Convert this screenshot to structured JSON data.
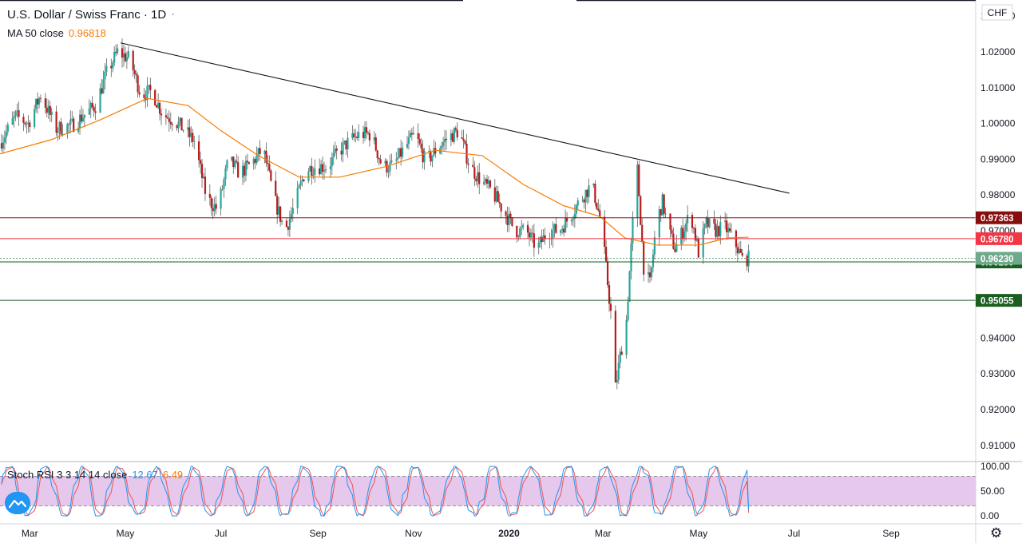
{
  "header": {
    "title": "U.S. Dollar / Swiss Franc · 1D",
    "ma_label": "MA 50 close",
    "ma_value": "0.96818"
  },
  "currency": "CHF",
  "stoch_rsi": {
    "label": "Stoch RSI 3 3 14 14 close",
    "k_value": "12.67",
    "d_value": "6.49",
    "ticks": [
      "100.00",
      "50.00",
      "0.00"
    ]
  },
  "chart_data": {
    "type": "candlestick",
    "title": "U.S. Dollar / Swiss Franc · 1D",
    "price_axis": {
      "range": [
        0.9055,
        1.0345
      ],
      "ticks": [
        "1.03000",
        "1.02000",
        "1.01000",
        "1.00000",
        "0.99000",
        "0.98000",
        "0.97000",
        "0.94000",
        "0.93000",
        "0.92000",
        "0.91000"
      ]
    },
    "time_axis": {
      "range": [
        "2019-02-10",
        "2020-10-25"
      ],
      "labels": [
        {
          "date": "2019-03-01",
          "text": "Mar"
        },
        {
          "date": "2019-05-01",
          "text": "May"
        },
        {
          "date": "2019-07-01",
          "text": "Jul"
        },
        {
          "date": "2019-09-01",
          "text": "Sep"
        },
        {
          "date": "2019-11-01",
          "text": "Nov"
        },
        {
          "date": "2020-01-01",
          "text": "2020"
        },
        {
          "date": "2020-03-01",
          "text": "Mar"
        },
        {
          "date": "2020-05-01",
          "text": "May"
        },
        {
          "date": "2020-07-01",
          "text": "Jul"
        },
        {
          "date": "2020-09-01",
          "text": "Sep"
        }
      ]
    },
    "price_path": [
      [
        "2019-02-10",
        0.9945
      ],
      [
        "2019-02-20",
        1.002
      ],
      [
        "2019-02-28",
        1.0
      ],
      [
        "2019-03-08",
        1.008
      ],
      [
        "2019-03-18",
        0.9985
      ],
      [
        "2019-03-28",
        0.9995
      ],
      [
        "2019-04-05",
        1.0025
      ],
      [
        "2019-04-12",
        1.005
      ],
      [
        "2019-04-19",
        1.014
      ],
      [
        "2019-04-26",
        1.02
      ],
      [
        "2019-05-04",
        1.018
      ],
      [
        "2019-05-11",
        1.008
      ],
      [
        "2019-05-18",
        1.009
      ],
      [
        "2019-05-25",
        1.0025
      ],
      [
        "2019-06-01",
        1.001
      ],
      [
        "2019-06-07",
        0.9985
      ],
      [
        "2019-06-14",
        0.995
      ],
      [
        "2019-06-22",
        0.979
      ],
      [
        "2019-06-29",
        0.976
      ],
      [
        "2019-07-06",
        0.99
      ],
      [
        "2019-07-13",
        0.986
      ],
      [
        "2019-07-21",
        0.989
      ],
      [
        "2019-07-28",
        0.993
      ],
      [
        "2019-08-04",
        0.979
      ],
      [
        "2019-08-11",
        0.97
      ],
      [
        "2019-08-17",
        0.977
      ],
      [
        "2019-08-24",
        0.987
      ],
      [
        "2019-08-31",
        0.988
      ],
      [
        "2019-09-07",
        0.988
      ],
      [
        "2019-09-14",
        0.992
      ],
      [
        "2019-09-21",
        0.995
      ],
      [
        "2019-09-28",
        0.997
      ],
      [
        "2019-10-05",
        0.997
      ],
      [
        "2019-10-12",
        0.988
      ],
      [
        "2019-10-19",
        0.988
      ],
      [
        "2019-10-26",
        0.993
      ],
      [
        "2019-11-02",
        0.997
      ],
      [
        "2019-11-09",
        0.989
      ],
      [
        "2019-11-16",
        0.993
      ],
      [
        "2019-11-23",
        0.996
      ],
      [
        "2019-11-30",
        0.998
      ],
      [
        "2019-12-07",
        0.988
      ],
      [
        "2019-12-14",
        0.984
      ],
      [
        "2019-12-21",
        0.981
      ],
      [
        "2019-12-28",
        0.976
      ],
      [
        "2020-01-05",
        0.97
      ],
      [
        "2020-01-12",
        0.97
      ],
      [
        "2020-01-19",
        0.965
      ],
      [
        "2020-01-26",
        0.97
      ],
      [
        "2020-02-02",
        0.97
      ],
      [
        "2020-02-09",
        0.974
      ],
      [
        "2020-02-16",
        0.979
      ],
      [
        "2020-02-23",
        0.983
      ],
      [
        "2020-02-29",
        0.972
      ],
      [
        "2020-03-06",
        0.947
      ],
      [
        "2020-03-09",
        0.926
      ],
      [
        "2020-03-12",
        0.935
      ],
      [
        "2020-03-16",
        0.945
      ],
      [
        "2020-03-20",
        0.972
      ],
      [
        "2020-03-23",
        0.987
      ],
      [
        "2020-03-27",
        0.96
      ],
      [
        "2020-03-31",
        0.955
      ],
      [
        "2020-04-04",
        0.972
      ],
      [
        "2020-04-08",
        0.978
      ],
      [
        "2020-04-12",
        0.97
      ],
      [
        "2020-04-16",
        0.965
      ],
      [
        "2020-04-20",
        0.969
      ],
      [
        "2020-04-26",
        0.975
      ],
      [
        "2020-05-01",
        0.964
      ],
      [
        "2020-05-06",
        0.972
      ],
      [
        "2020-05-12",
        0.97
      ],
      [
        "2020-05-18",
        0.971
      ],
      [
        "2020-05-24",
        0.967
      ],
      [
        "2020-05-29",
        0.962
      ],
      [
        "2020-06-02",
        0.9623
      ]
    ],
    "ma50_path": [
      [
        "2019-02-10",
        0.9915
      ],
      [
        "2019-03-15",
        0.9955
      ],
      [
        "2019-04-15",
        1.001
      ],
      [
        "2019-05-15",
        1.007
      ],
      [
        "2019-06-10",
        1.005
      ],
      [
        "2019-07-01",
        0.998
      ],
      [
        "2019-07-25",
        0.991
      ],
      [
        "2019-08-20",
        0.985
      ],
      [
        "2019-09-15",
        0.985
      ],
      [
        "2019-10-15",
        0.988
      ],
      [
        "2019-11-15",
        0.9925
      ],
      [
        "2019-12-15",
        0.991
      ],
      [
        "2020-01-10",
        0.983
      ],
      [
        "2020-02-05",
        0.977
      ],
      [
        "2020-02-28",
        0.974
      ],
      [
        "2020-03-15",
        0.968
      ],
      [
        "2020-04-05",
        0.966
      ],
      [
        "2020-05-01",
        0.966
      ],
      [
        "2020-05-20",
        0.968
      ],
      [
        "2020-06-02",
        0.9682
      ]
    ],
    "trendline": {
      "from": [
        "2019-04-28",
        1.0225
      ],
      "to": [
        "2020-06-28",
        0.9805
      ]
    },
    "horizontal_levels": [
      {
        "value": 0.97363,
        "label": "0.97363",
        "color": "#880e0e"
      },
      {
        "value": 0.9678,
        "label": "0.96780",
        "color": "#f23645"
      },
      {
        "value": 0.9613,
        "label": "0.96130",
        "color": "#1b5e20"
      },
      {
        "value": 0.95055,
        "label": "0.95055",
        "color": "#1b5e20"
      }
    ],
    "last_price": {
      "value": 0.9623,
      "label": "0.96230",
      "color": "#6da98a"
    },
    "stoch_rsi_band": [
      20,
      80
    ],
    "stoch_rsi_last": {
      "k": 12.67,
      "d": 6.49
    }
  },
  "colors": {
    "up": "#26a69a",
    "down": "#b71c1c",
    "ma": "#f57c00",
    "k": "#2196f3",
    "d": "#ef5350",
    "band": "#e1bee7"
  }
}
